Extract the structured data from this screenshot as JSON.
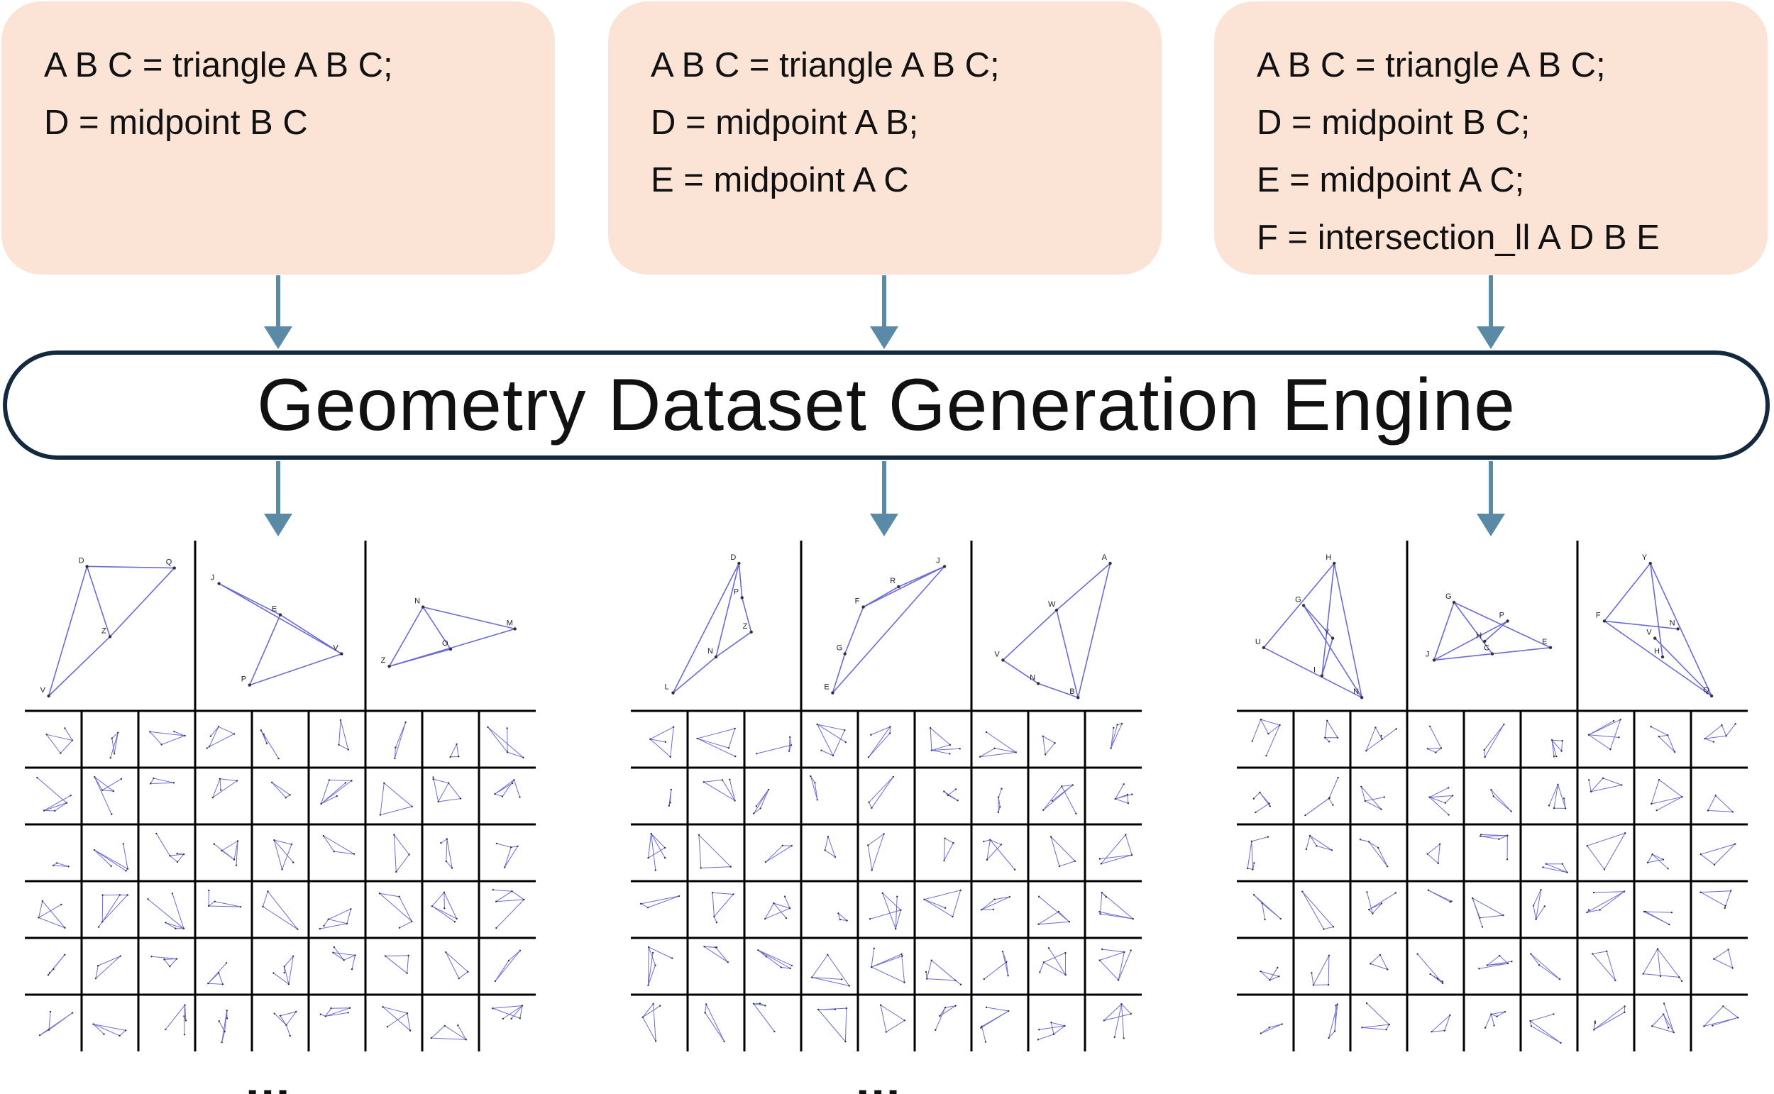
{
  "code_blocks": [
    {
      "lines": [
        "A B C = triangle A B C;",
        "D = midpoint B C"
      ]
    },
    {
      "lines": [
        "A B C = triangle A B C;",
        "D = midpoint A B;",
        "E = midpoint A C"
      ]
    },
    {
      "lines": [
        "A B C = triangle A B C;",
        "D = midpoint B C;",
        "E = midpoint A C;",
        "F = intersection_ll A D B E"
      ]
    }
  ],
  "engine": {
    "title": "Geometry Dataset Generation Engine"
  },
  "colors": {
    "code_box_fill": "#fbe3d6",
    "arrow": "#5a8aa6",
    "engine_border": "#13293d",
    "figure_stroke": "#6b6bd6",
    "grid_line": "#000000"
  },
  "datasets": [
    {
      "ellipsis": "...",
      "large": [
        {
          "labels": [
            "D",
            "Q",
            "Z",
            "V"
          ]
        },
        {
          "labels": [
            "J",
            "E",
            "P",
            "V"
          ]
        },
        {
          "labels": [
            "N",
            "M",
            "O",
            "Z"
          ]
        }
      ]
    },
    {
      "ellipsis": "...",
      "large": [
        {
          "labels": [
            "D",
            "P",
            "Z",
            "N",
            "L"
          ]
        },
        {
          "labels": [
            "J",
            "R",
            "F",
            "G",
            "E"
          ]
        },
        {
          "labels": [
            "A",
            "W",
            "V",
            "N",
            "B"
          ]
        }
      ]
    },
    {
      "ellipsis": "...",
      "large": [
        {
          "labels": [
            "H",
            "G",
            "Y",
            "U",
            "I",
            "N"
          ]
        },
        {
          "labels": [
            "G",
            "P",
            "H",
            "J",
            "C",
            "E"
          ]
        },
        {
          "labels": [
            "Y",
            "F",
            "N",
            "V",
            "H",
            "Q"
          ]
        }
      ]
    }
  ]
}
